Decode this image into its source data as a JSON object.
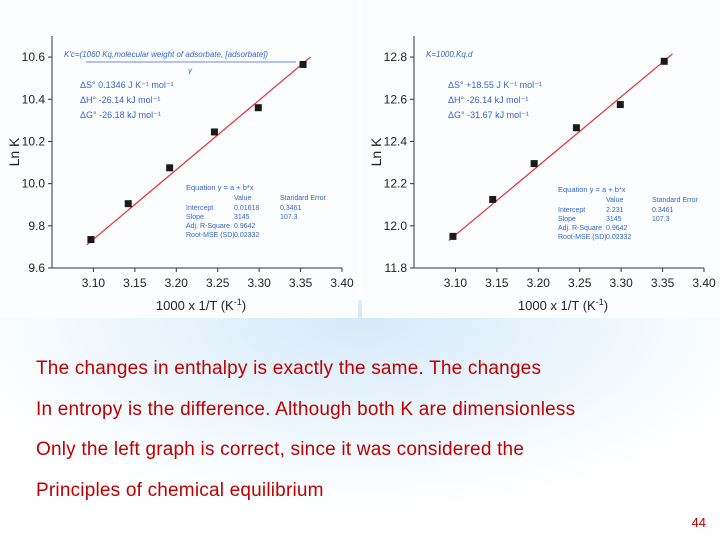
{
  "chart_data": [
    {
      "type": "scatter",
      "xlabel": "1000 x 1/T (K",
      "xlabel_sup": "-1",
      "xlabel_end": ")",
      "ylabel": "Ln K",
      "xlim": [
        3.05,
        3.4
      ],
      "ylim": [
        9.6,
        10.7
      ],
      "x_ticks": [
        "3.10",
        "3.15",
        "3.20",
        "3.25",
        "3.30",
        "3.35",
        "3.40"
      ],
      "y_ticks": [
        "9.6",
        "9.8",
        "10.0",
        "10.2",
        "10.4",
        "10.6"
      ],
      "points": [
        {
          "x": 3.097,
          "y": 9.735
        },
        {
          "x": 3.142,
          "y": 9.905
        },
        {
          "x": 3.192,
          "y": 10.075
        },
        {
          "x": 3.246,
          "y": 10.245
        },
        {
          "x": 3.299,
          "y": 10.36
        },
        {
          "x": 3.353,
          "y": 10.565
        }
      ],
      "fit_line": {
        "x": [
          3.092,
          3.362
        ],
        "y": [
          9.71,
          10.6
        ]
      },
      "formula_line1": "K'c=(1060 Kq,molecular weight of adsorbate, [adsorbate])",
      "formula_line2": "γ",
      "thermo": [
        "ΔS° 0.1346 J K⁻¹ mol⁻¹",
        "ΔH° -26.14 kJ mol⁻¹",
        "ΔG° -26.18 kJ mol⁻¹"
      ],
      "fit_table": {
        "title": "Equation   y = a + b*x",
        "headers": [
          "",
          "Value",
          "Standard Error"
        ],
        "rows": [
          [
            "Intercept",
            "0.01618",
            "0.3461"
          ],
          [
            "Slope",
            "3145",
            "107.3"
          ],
          [
            "Adj. R-Square",
            "0.9642",
            ""
          ],
          [
            "Root-MSE (SD)",
            "0.02332",
            ""
          ]
        ]
      }
    },
    {
      "type": "scatter",
      "xlabel": "1000 x 1/T (K",
      "xlabel_sup": "-1",
      "xlabel_end": ")",
      "ylabel": "Ln K",
      "xlim": [
        3.05,
        3.4
      ],
      "ylim": [
        11.8,
        12.9
      ],
      "x_ticks": [
        "3.10",
        "3.15",
        "3.20",
        "3.25",
        "3.30",
        "3.35",
        "3.40"
      ],
      "y_ticks": [
        "11.8",
        "12.0",
        "12.2",
        "12.4",
        "12.6",
        "12.8"
      ],
      "points": [
        {
          "x": 3.097,
          "y": 11.95
        },
        {
          "x": 3.145,
          "y": 12.125
        },
        {
          "x": 3.195,
          "y": 12.295
        },
        {
          "x": 3.246,
          "y": 12.465
        },
        {
          "x": 3.299,
          "y": 12.575
        },
        {
          "x": 3.352,
          "y": 12.78
        }
      ],
      "fit_line": {
        "x": [
          3.092,
          3.362
        ],
        "y": [
          11.93,
          12.815
        ]
      },
      "formula_line1": "K=1000.Kq.d",
      "formula_line2": "",
      "thermo": [
        "ΔS° +18.55 J K⁻¹ mol⁻¹",
        "ΔH° -26.14 kJ mol⁻¹",
        "ΔG° -31.67 kJ mol⁻¹"
      ],
      "fit_table": {
        "title": "Equation   y = a + b*x",
        "headers": [
          "",
          "Value",
          "Standard Error"
        ],
        "rows": [
          [
            "Intercept",
            "2.231",
            "0.3461"
          ],
          [
            "Slope",
            "3145",
            "107.3"
          ],
          [
            "Adj. R-Square",
            "0.9642",
            ""
          ],
          [
            "Root-MSE (SD)",
            "0.02332",
            ""
          ]
        ]
      }
    }
  ],
  "colors": {
    "fit_line": "#e03030",
    "marker": "#1a1a1a",
    "annotation": "#3366cc",
    "body_text": "#c00000"
  },
  "slide": {
    "lines": [
      "The changes in enthalpy is exactly the same. The changes",
      "In entropy is the difference. Although both K are dimensionless",
      "Only the left graph is correct, since it was considered the",
      "Principles of chemical equilibrium"
    ],
    "page_number": "44"
  }
}
